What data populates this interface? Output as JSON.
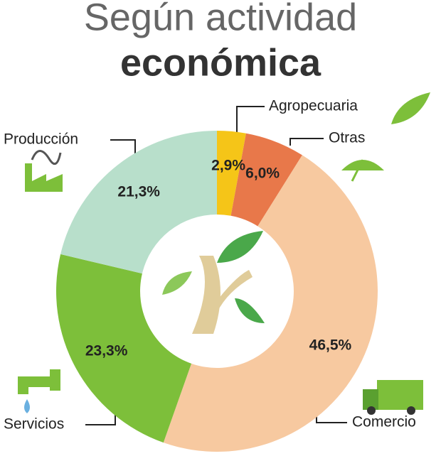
{
  "chart_data": {
    "type": "donut",
    "title": "Según actividad",
    "subtitle": "económica",
    "categories": [
      "Agropecuaria",
      "Otras",
      "Comercio",
      "Servicios",
      "Producción"
    ],
    "values": [
      2.9,
      6.0,
      46.5,
      23.3,
      21.3
    ],
    "value_labels": [
      "2,9%",
      "6,0%",
      "46,5%",
      "23,3%",
      "21,3%"
    ],
    "colors": [
      "#f5c518",
      "#e8784a",
      "#f7c9a0",
      "#7dbf3a",
      "#b8dfcb"
    ]
  }
}
